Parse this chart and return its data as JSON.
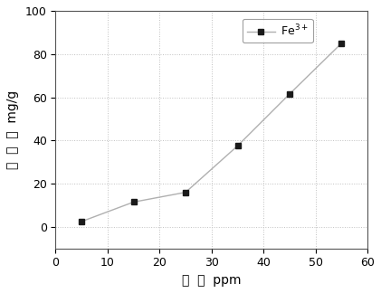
{
  "x": [
    5,
    15,
    25,
    35,
    45,
    55
  ],
  "y": [
    2.5,
    11.5,
    16.0,
    37.5,
    61.5,
    85.0
  ],
  "xlim": [
    0,
    60
  ],
  "ylim": [
    -10,
    100
  ],
  "xticks": [
    0,
    10,
    20,
    30,
    40,
    50,
    60
  ],
  "yticks": [
    0,
    20,
    40,
    60,
    80,
    100
  ],
  "xlabel": "浓  度  ppm",
  "ylabel_chars": [
    "吸",
    "附",
    "量",
    "mg/g"
  ],
  "legend_label": "Fe$^{3+}$",
  "line_color": "#b0b0b0",
  "marker_color": "#1a1a1a",
  "marker": "s",
  "marker_size": 5,
  "line_style": "-",
  "line_width": 1.0,
  "grid": true,
  "grid_style": ":",
  "grid_color": "#c0c0c0",
  "grid_axis": "both",
  "background_color": "#ffffff",
  "legend_fontsize": 9,
  "axis_label_fontsize": 10,
  "tick_fontsize": 9,
  "spine_color": "#555555"
}
